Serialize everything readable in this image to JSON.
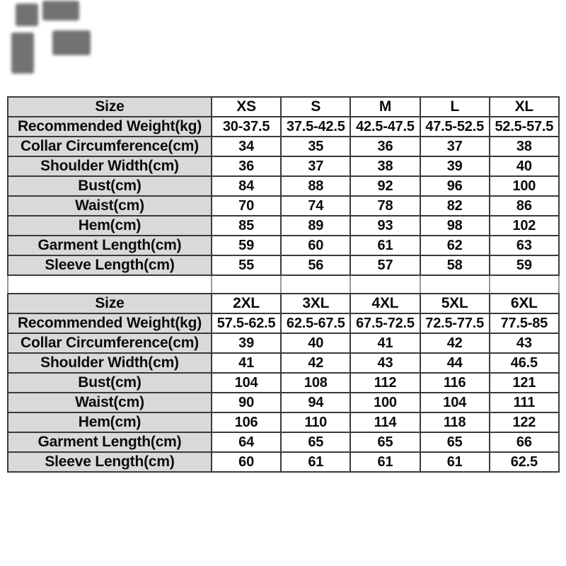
{
  "decorations": {
    "top_left_watermark": "illegible-dark-glyph-marks"
  },
  "style": {
    "page_bg": "#ffffff",
    "label_cell_bg": "#d9d9d9",
    "grid_border_color": "#3a3a3a",
    "text_color": "#0c0c0c"
  },
  "tables": [
    {
      "header": {
        "label": "Size",
        "columns": [
          "XS",
          "S",
          "M",
          "L",
          "XL"
        ]
      },
      "rows": [
        {
          "label": "Recommended Weight(kg)",
          "values": [
            "30-37.5",
            "37.5-42.5",
            "42.5-47.5",
            "47.5-52.5",
            "52.5-57.5"
          ]
        },
        {
          "label": "Collar Circumference(cm)",
          "values": [
            "34",
            "35",
            "36",
            "37",
            "38"
          ]
        },
        {
          "label": "Shoulder Width(cm)",
          "values": [
            "36",
            "37",
            "38",
            "39",
            "40"
          ]
        },
        {
          "label": "Bust(cm)",
          "values": [
            "84",
            "88",
            "92",
            "96",
            "100"
          ]
        },
        {
          "label": "Waist(cm)",
          "values": [
            "70",
            "74",
            "78",
            "82",
            "86"
          ]
        },
        {
          "label": "Hem(cm)",
          "values": [
            "85",
            "89",
            "93",
            "98",
            "102"
          ]
        },
        {
          "label": "Garment Length(cm)",
          "values": [
            "59",
            "60",
            "61",
            "62",
            "63"
          ]
        },
        {
          "label": "Sleeve Length(cm)",
          "values": [
            "55",
            "56",
            "57",
            "58",
            "59"
          ]
        }
      ]
    },
    {
      "header": {
        "label": "Size",
        "columns": [
          "2XL",
          "3XL",
          "4XL",
          "5XL",
          "6XL"
        ]
      },
      "rows": [
        {
          "label": "Recommended Weight(kg)",
          "values": [
            "57.5-62.5",
            "62.5-67.5",
            "67.5-72.5",
            "72.5-77.5",
            "77.5-85"
          ]
        },
        {
          "label": "Collar Circumference(cm)",
          "values": [
            "39",
            "40",
            "41",
            "42",
            "43"
          ]
        },
        {
          "label": "Shoulder Width(cm)",
          "values": [
            "41",
            "42",
            "43",
            "44",
            "46.5"
          ]
        },
        {
          "label": "Bust(cm)",
          "values": [
            "104",
            "108",
            "112",
            "116",
            "121"
          ]
        },
        {
          "label": "Waist(cm)",
          "values": [
            "90",
            "94",
            "100",
            "104",
            "111"
          ]
        },
        {
          "label": "Hem(cm)",
          "values": [
            "106",
            "110",
            "114",
            "118",
            "122"
          ]
        },
        {
          "label": "Garment Length(cm)",
          "values": [
            "64",
            "65",
            "65",
            "65",
            "66"
          ]
        },
        {
          "label": "Sleeve Length(cm)",
          "values": [
            "60",
            "61",
            "61",
            "61",
            "62.5"
          ]
        }
      ]
    }
  ]
}
